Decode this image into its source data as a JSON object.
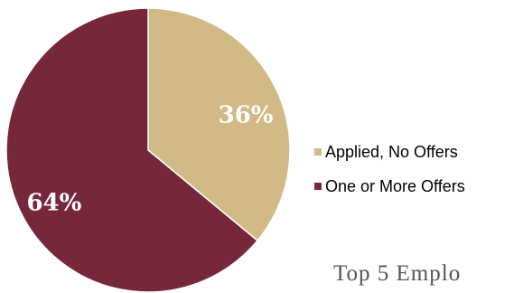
{
  "chart_data": {
    "type": "pie",
    "categories": [
      "Applied, No Offers",
      "One or More Offers"
    ],
    "values": [
      36,
      64
    ],
    "labels": [
      "36%",
      "64%"
    ],
    "colors": [
      "#D2BA87",
      "#76283A"
    ],
    "legend_position": "right",
    "title": "",
    "xlabel": "",
    "ylabel": ""
  },
  "footer_text": "Top 5 Emplo"
}
